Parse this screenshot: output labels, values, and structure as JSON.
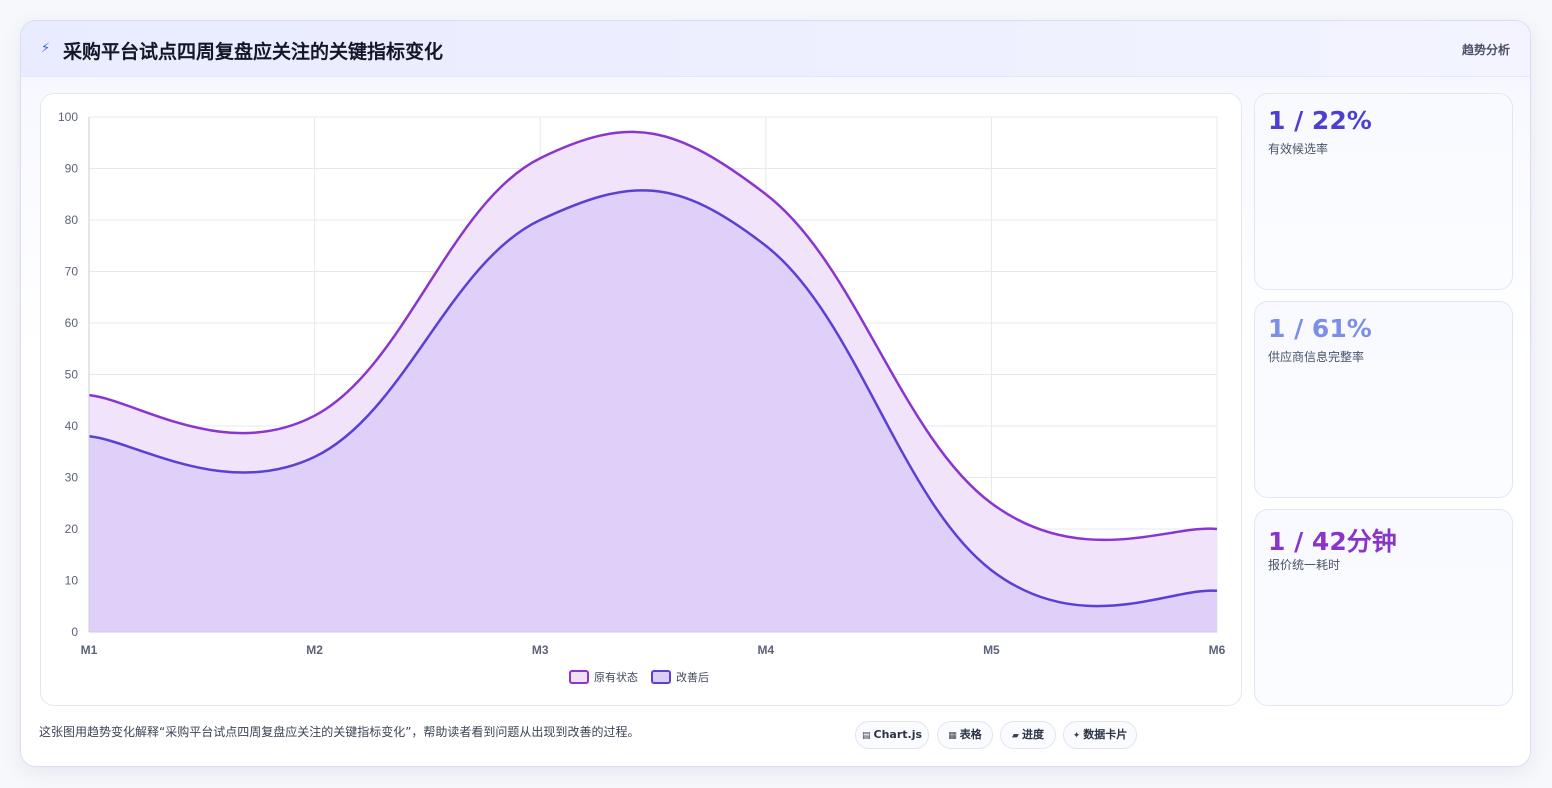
{
  "header": {
    "icon": "lightning-icon",
    "title": "采购平台试点四周复盘应关注的关键指标变化",
    "tag": "趋势分析"
  },
  "chart_data": {
    "type": "area",
    "categories": [
      "M1",
      "M2",
      "M3",
      "M4",
      "M5",
      "M6"
    ],
    "series": [
      {
        "name": "原有状态",
        "values": [
          46,
          42,
          92,
          85,
          25,
          20
        ],
        "color": "#8a35cf",
        "fill": "#efe1fa"
      },
      {
        "name": "改善后",
        "values": [
          38,
          34,
          80,
          75,
          12,
          8
        ],
        "color": "#5a40d4",
        "fill": "#dccdf7"
      }
    ],
    "ylim": [
      0,
      100
    ],
    "yticks": [
      0,
      10,
      20,
      30,
      40,
      50,
      60,
      70,
      80,
      90,
      100
    ],
    "grid": true,
    "legend_position": "bottom"
  },
  "kpis": [
    {
      "value": "1 / 22%",
      "label": "有效候选率",
      "color": "#4f3fd0"
    },
    {
      "value": "1 / 61%",
      "label": "供应商信息完整率",
      "color": "#7b8fe6"
    },
    {
      "value": "1 / 42分钟",
      "label": "报价统一耗时",
      "color": "#8b34c9"
    }
  ],
  "footer": {
    "caption": "这张图用趋势变化解释“采购平台试点四周复盘应关注的关键指标变化”，帮助读者看到问题从出现到改善的过程。",
    "chips": [
      {
        "icon": "chart-icon",
        "glyph": "▤",
        "label": "Chart.js"
      },
      {
        "icon": "table-icon",
        "glyph": "▦",
        "label": "表格"
      },
      {
        "icon": "progress-icon",
        "glyph": "▰",
        "label": "进度"
      },
      {
        "icon": "sparkle-icon",
        "glyph": "✦",
        "label": "数据卡片"
      }
    ]
  }
}
